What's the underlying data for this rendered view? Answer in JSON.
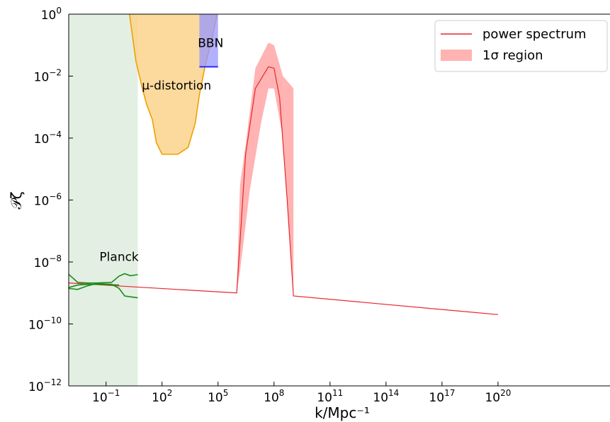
{
  "chart_data": {
    "type": "line",
    "title": "",
    "xlabel": "k/Mpc⁻¹",
    "ylabel": "𝒫ζ",
    "x_scale": "log",
    "y_scale": "log",
    "xlim": [
      0.001,
      1e+26
    ],
    "ylim": [
      1e-12,
      1
    ],
    "x_ticks": [
      {
        "value": 0.1,
        "base": "10",
        "exp": "−1"
      },
      {
        "value": 100,
        "base": "10",
        "exp": "2"
      },
      {
        "value": 100000,
        "base": "10",
        "exp": "5"
      },
      {
        "value": 100000000.0,
        "base": "10",
        "exp": "8"
      },
      {
        "value": 100000000000.0,
        "base": "10",
        "exp": "11"
      },
      {
        "value": 100000000000000.0,
        "base": "10",
        "exp": "14"
      },
      {
        "value": 1e+17,
        "base": "10",
        "exp": "17"
      },
      {
        "value": 1e+20,
        "base": "10",
        "exp": "20"
      }
    ],
    "y_ticks": [
      {
        "value": 1,
        "base": "10",
        "exp": "0"
      },
      {
        "value": 0.01,
        "base": "10",
        "exp": "−2"
      },
      {
        "value": 0.0001,
        "base": "10",
        "exp": "−4"
      },
      {
        "value": 1e-06,
        "base": "10",
        "exp": "−6"
      },
      {
        "value": 1e-08,
        "base": "10",
        "exp": "−8"
      },
      {
        "value": 1e-10,
        "base": "10",
        "exp": "−10"
      },
      {
        "value": 1e-12,
        "base": "10",
        "exp": "−12"
      }
    ],
    "grid": false,
    "legend_position": "top-right",
    "legend": [
      {
        "label": "power spectrum",
        "kind": "line",
        "color": "#e8262b"
      },
      {
        "label": "1σ region",
        "kind": "patch",
        "color": "#ffb3b3"
      }
    ],
    "regions": [
      {
        "label": "Planck",
        "color": "#e3efe3",
        "x_range": [
          0.001,
          5
        ]
      },
      {
        "label": "μ-distortion",
        "color": "#fcd48c",
        "edge_color": "#f0a000",
        "upper_edge": [
          [
            1.8,
            1
          ],
          [
            4,
            0.03
          ],
          [
            8,
            0.005
          ],
          [
            15,
            0.0012
          ],
          [
            30,
            0.0004
          ],
          [
            50,
            7e-05
          ],
          [
            100,
            3e-05
          ],
          [
            700,
            3e-05
          ],
          [
            2500,
            5e-05
          ],
          [
            6000,
            0.0003
          ],
          [
            10000,
            0.0025
          ],
          [
            20000,
            0.02
          ],
          [
            50000,
            0.2
          ],
          [
            90000,
            1
          ]
        ]
      },
      {
        "label": "BBN",
        "color": "#9797ff",
        "edge_color": "#2a2aff",
        "x_range": [
          10000,
          100000
        ],
        "y_range": [
          0.02,
          1
        ]
      }
    ],
    "series": [
      {
        "name": "power spectrum",
        "color": "#e8262b",
        "points": [
          [
            0.001,
            2.1e-09
          ],
          [
            1000000.0,
            1e-09
          ],
          [
            1600000.0,
            8e-08
          ],
          [
            3000000.0,
            3e-05
          ],
          [
            10000000.0,
            0.004
          ],
          [
            50000000.0,
            0.02
          ],
          [
            100000000.0,
            0.018
          ],
          [
            200000000.0,
            0.002
          ],
          [
            500000000.0,
            1.1e-06
          ],
          [
            1100000000.0,
            8e-10
          ],
          [
            1e+20,
            2e-10
          ]
        ]
      },
      {
        "name": "1σ region",
        "color": "#ffb3b3",
        "upper": [
          [
            1000000.0,
            1e-09
          ],
          [
            1500000.0,
            3e-06
          ],
          [
            3000000.0,
            6e-05
          ],
          [
            10000000.0,
            0.018
          ],
          [
            50000000.0,
            0.12
          ],
          [
            100000000.0,
            0.1
          ],
          [
            300000000.0,
            0.01
          ],
          [
            1100000000.0,
            0.004
          ]
        ],
        "lower": [
          [
            1100000000.0,
            8e-10
          ],
          [
            600000000.0,
            2e-07
          ],
          [
            300000000.0,
            0.0001
          ],
          [
            100000000.0,
            0.004
          ],
          [
            50000000.0,
            0.004
          ],
          [
            20000000.0,
            0.0003
          ],
          [
            5000000.0,
            2e-06
          ],
          [
            1500000.0,
            5e-09
          ],
          [
            1000000.0,
            1e-09
          ]
        ]
      },
      {
        "name": "Planck upper",
        "color": "#1a8a1a",
        "points": [
          [
            0.001,
            4e-09
          ],
          [
            0.003,
            2.2e-09
          ],
          [
            0.01,
            2.1e-09
          ],
          [
            0.03,
            2.1e-09
          ],
          [
            0.2,
            2.2e-09
          ],
          [
            0.5,
            3.5e-09
          ],
          [
            1,
            4.2e-09
          ],
          [
            2,
            3.6e-09
          ],
          [
            5,
            3.9e-09
          ]
        ]
      },
      {
        "name": "Planck lower",
        "color": "#1a8a1a",
        "points": [
          [
            0.001,
            1.4e-09
          ],
          [
            0.003,
            1.3e-09
          ],
          [
            0.01,
            1.7e-09
          ],
          [
            0.03,
            2e-09
          ],
          [
            0.2,
            1.9e-09
          ],
          [
            0.5,
            1.4e-09
          ],
          [
            1,
            8e-10
          ],
          [
            2,
            7.5e-10
          ],
          [
            5,
            7e-10
          ]
        ]
      },
      {
        "name": "Planck centre",
        "color": "#1a8a1a",
        "points": [
          [
            0.001,
            1.5e-09
          ],
          [
            0.003,
            1.8e-09
          ],
          [
            0.01,
            1.9e-09
          ],
          [
            0.03,
            1.9e-09
          ],
          [
            0.2,
            1.85e-09
          ],
          [
            0.4,
            1.8e-09
          ],
          [
            0.5,
            1.8e-09
          ]
        ]
      }
    ],
    "annotations": [
      {
        "text": "Planck",
        "x": 0.5,
        "y": 1.5e-08
      },
      {
        "text": "μ-distortion",
        "x": 600,
        "y": 0.005
      },
      {
        "text": "BBN",
        "x": 40000,
        "y": 0.12
      }
    ]
  }
}
